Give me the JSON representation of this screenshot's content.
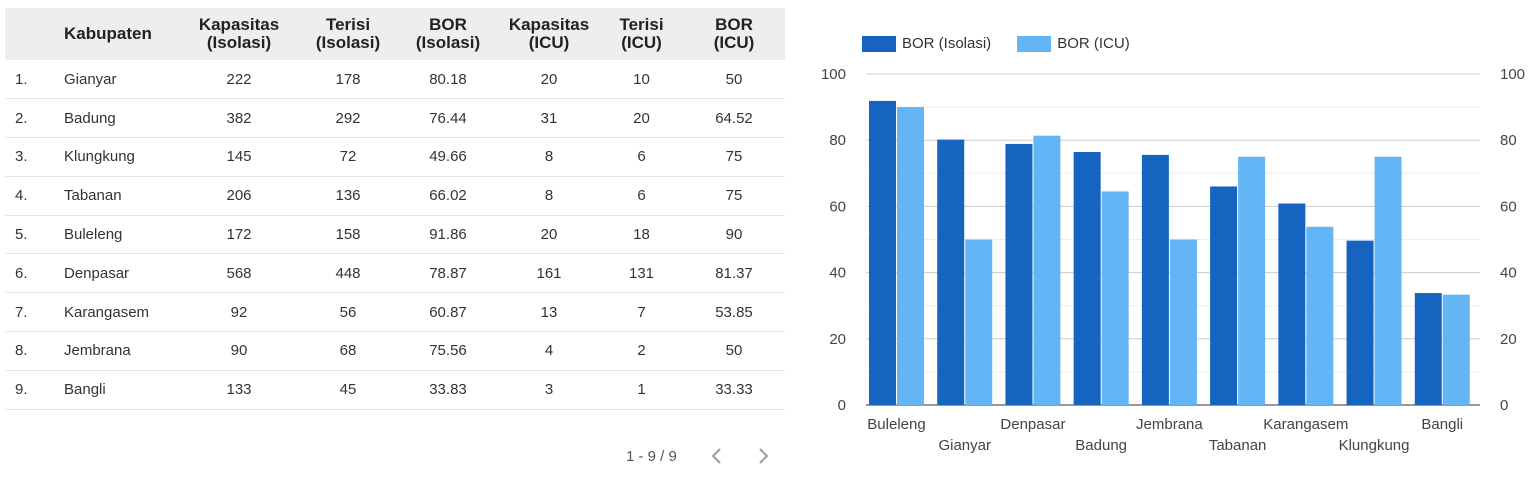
{
  "table": {
    "headers": {
      "idx": "",
      "name": "Kabupaten",
      "kap_iso": [
        "Kapasitas",
        "(Isolasi)"
      ],
      "ter_iso": [
        "Terisi",
        "(Isolasi)"
      ],
      "bor_iso": [
        "BOR",
        "(Isolasi)"
      ],
      "kap_icu": [
        "Kapasitas",
        "(ICU)"
      ],
      "ter_icu": [
        "Terisi",
        "(ICU)"
      ],
      "bor_icu": [
        "BOR",
        "(ICU)"
      ]
    },
    "rows": [
      {
        "idx": "1.",
        "name": "Gianyar",
        "kap_iso": "222",
        "ter_iso": "178",
        "bor_iso": "80.18",
        "kap_icu": "20",
        "ter_icu": "10",
        "bor_icu": "50"
      },
      {
        "idx": "2.",
        "name": "Badung",
        "kap_iso": "382",
        "ter_iso": "292",
        "bor_iso": "76.44",
        "kap_icu": "31",
        "ter_icu": "20",
        "bor_icu": "64.52"
      },
      {
        "idx": "3.",
        "name": "Klungkung",
        "kap_iso": "145",
        "ter_iso": "72",
        "bor_iso": "49.66",
        "kap_icu": "8",
        "ter_icu": "6",
        "bor_icu": "75"
      },
      {
        "idx": "4.",
        "name": "Tabanan",
        "kap_iso": "206",
        "ter_iso": "136",
        "bor_iso": "66.02",
        "kap_icu": "8",
        "ter_icu": "6",
        "bor_icu": "75"
      },
      {
        "idx": "5.",
        "name": "Buleleng",
        "kap_iso": "172",
        "ter_iso": "158",
        "bor_iso": "91.86",
        "kap_icu": "20",
        "ter_icu": "18",
        "bor_icu": "90"
      },
      {
        "idx": "6.",
        "name": "Denpasar",
        "kap_iso": "568",
        "ter_iso": "448",
        "bor_iso": "78.87",
        "kap_icu": "161",
        "ter_icu": "131",
        "bor_icu": "81.37"
      },
      {
        "idx": "7.",
        "name": "Karangasem",
        "kap_iso": "92",
        "ter_iso": "56",
        "bor_iso": "60.87",
        "kap_icu": "13",
        "ter_icu": "7",
        "bor_icu": "53.85"
      },
      {
        "idx": "8.",
        "name": "Jembrana",
        "kap_iso": "90",
        "ter_iso": "68",
        "bor_iso": "75.56",
        "kap_icu": "4",
        "ter_icu": "2",
        "bor_icu": "50"
      },
      {
        "idx": "9.",
        "name": "Bangli",
        "kap_iso": "133",
        "ter_iso": "45",
        "bor_iso": "33.83",
        "kap_icu": "3",
        "ter_icu": "1",
        "bor_icu": "33.33"
      }
    ],
    "pager": {
      "label": "1 - 9 / 9",
      "prev_icon": "chevron-left-icon",
      "next_icon": "chevron-right-icon"
    }
  },
  "chart_data": {
    "type": "bar",
    "categories": [
      "Buleleng",
      "Gianyar",
      "Denpasar",
      "Badung",
      "Jembrana",
      "Tabanan",
      "Karangasem",
      "Klungkung",
      "Bangli"
    ],
    "series": [
      {
        "name": "BOR (Isolasi)",
        "color": "#1565c0",
        "values": [
          91.86,
          80.18,
          78.87,
          76.44,
          75.56,
          66.02,
          60.87,
          49.66,
          33.83
        ]
      },
      {
        "name": "BOR (ICU)",
        "color": "#64b5f6",
        "values": [
          90,
          50,
          81.37,
          64.52,
          50,
          75,
          53.85,
          75,
          33.33
        ]
      }
    ],
    "ylim": [
      0,
      100
    ],
    "yticks": [
      0,
      20,
      40,
      60,
      80,
      100
    ],
    "title": "",
    "xlabel": "",
    "ylabel": "",
    "grid": true,
    "legend": "top-left",
    "dual_axis_labels": true
  }
}
